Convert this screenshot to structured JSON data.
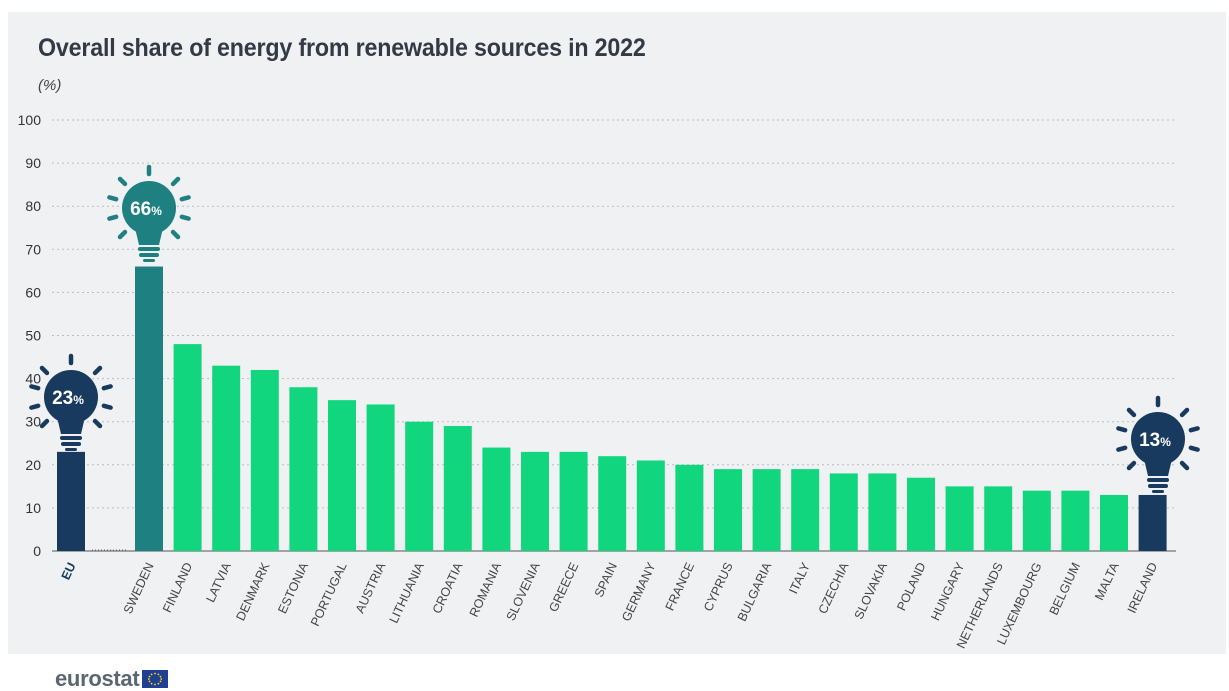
{
  "title": "Overall share of energy from renewable sources in 2022",
  "unit_label": "(%)",
  "logo_text": "eurostat",
  "colors": {
    "eu": "#173a5e",
    "top": "#1e8080",
    "country": "#12d67e",
    "background": "#f0f1f3",
    "grid": "#b9bec4",
    "axis": "#555555"
  },
  "highlights": [
    {
      "category": "EU",
      "value": "23",
      "suffix": "%",
      "color": "#173a5e"
    },
    {
      "category": "SWEDEN",
      "value": "66",
      "suffix": "%",
      "color": "#1e8080"
    },
    {
      "category": "IRELAND",
      "value": "13",
      "suffix": "%",
      "color": "#173a5e"
    }
  ],
  "chart_data": {
    "type": "bar",
    "title": "Overall share of energy from renewable sources in 2022",
    "ylabel": "(%)",
    "xlabel": "",
    "ylim": [
      0,
      100
    ],
    "yticks": [
      0,
      10,
      20,
      30,
      40,
      50,
      60,
      70,
      80,
      90,
      100
    ],
    "grid": true,
    "categories": [
      "EU",
      "SWEDEN",
      "FINLAND",
      "LATVIA",
      "DENMARK",
      "ESTONIA",
      "PORTUGAL",
      "AUSTRIA",
      "LITHUANIA",
      "CROATIA",
      "ROMANIA",
      "SLOVENIA",
      "GREECE",
      "SPAIN",
      "GERMANY",
      "FRANCE",
      "CYPRUS",
      "BULGARIA",
      "ITALY",
      "CZECHIA",
      "SLOVAKIA",
      "POLAND",
      "HUNGARY",
      "NETHERLANDS",
      "LUXEMBOURG",
      "BELGIUM",
      "MALTA",
      "IRELAND"
    ],
    "values": [
      23,
      66,
      48,
      43,
      42,
      38,
      35,
      34,
      30,
      29,
      24,
      23,
      23,
      22,
      21,
      20,
      19,
      19,
      19,
      18,
      18,
      17,
      15,
      15,
      14,
      14,
      13,
      13
    ]
  }
}
